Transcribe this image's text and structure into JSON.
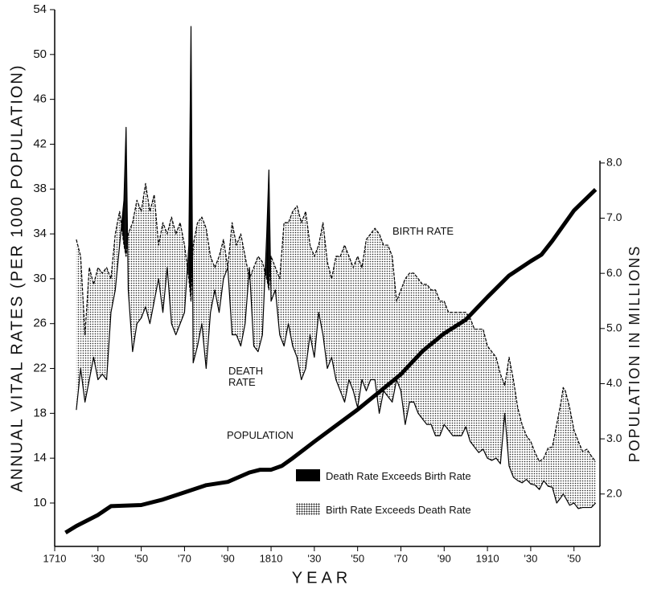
{
  "chart_data": {
    "type": "line",
    "y_label": "ANNUAL VITAL RATES (PER 1000 POPULATION)",
    "y2_label": "POPULATION IN MILLIONS",
    "x_label": "YEAR",
    "xlim": [
      1710,
      1962
    ],
    "xticks": [
      1710,
      {
        "value": 1730,
        "label": "'30"
      },
      {
        "value": 1750,
        "label": "'50"
      },
      {
        "value": 1770,
        "label": "'70"
      },
      {
        "value": 1790,
        "label": "'90"
      },
      1810,
      {
        "value": 1830,
        "label": "'30"
      },
      {
        "value": 1850,
        "label": "'50"
      },
      {
        "value": 1870,
        "label": "'70"
      },
      {
        "value": 1890,
        "label": "'90"
      },
      1910,
      {
        "value": 1930,
        "label": "'30"
      },
      {
        "value": 1950,
        "label": "'50"
      }
    ],
    "ylim": [
      6.13,
      54
    ],
    "yticks": [
      10,
      14,
      18,
      22,
      26,
      30,
      34,
      38,
      42,
      46,
      50,
      54
    ],
    "y2lim": [
      1.05,
      10.78
    ],
    "y2ticks": [
      {
        "value": 2,
        "label": "2.0"
      },
      {
        "value": 3,
        "label": "3.0"
      },
      {
        "value": 4,
        "label": "4.0"
      },
      {
        "value": 5,
        "label": "5.0"
      },
      {
        "value": 6,
        "label": "6.0"
      },
      {
        "value": 7,
        "label": "7.0"
      },
      {
        "value": 8,
        "label": "8.0"
      }
    ],
    "x": [
      1720,
      1722,
      1724,
      1726,
      1728,
      1730,
      1732,
      1734,
      1736,
      1738,
      1740,
      1742,
      1743,
      1744,
      1746,
      1748,
      1750,
      1752,
      1754,
      1756,
      1758,
      1760,
      1762,
      1764,
      1766,
      1768,
      1770,
      1772,
      1773,
      1774,
      1776,
      1778,
      1780,
      1782,
      1784,
      1786,
      1788,
      1790,
      1792,
      1794,
      1796,
      1798,
      1800,
      1802,
      1804,
      1806,
      1808,
      1809,
      1810,
      1812,
      1814,
      1816,
      1818,
      1820,
      1822,
      1824,
      1826,
      1828,
      1830,
      1832,
      1834,
      1836,
      1838,
      1840,
      1842,
      1844,
      1846,
      1848,
      1850,
      1852,
      1854,
      1856,
      1858,
      1860,
      1862,
      1864,
      1866,
      1868,
      1870,
      1872,
      1874,
      1876,
      1878,
      1880,
      1882,
      1884,
      1886,
      1888,
      1890,
      1892,
      1894,
      1896,
      1898,
      1900,
      1902,
      1904,
      1906,
      1908,
      1910,
      1912,
      1914,
      1916,
      1918,
      1920,
      1922,
      1924,
      1926,
      1928,
      1930,
      1932,
      1934,
      1936,
      1938,
      1940,
      1942,
      1944,
      1945,
      1946,
      1948,
      1950,
      1952,
      1954,
      1956,
      1958,
      1960
    ],
    "series": [
      {
        "name": "BIRTH RATE",
        "color": "#000000",
        "values": [
          33.5,
          32,
          25,
          31,
          29.5,
          31,
          30.5,
          31,
          30,
          34,
          36,
          33,
          32,
          34,
          35,
          37,
          36,
          38.5,
          36,
          37.5,
          33,
          35,
          34,
          35.5,
          34,
          35,
          33,
          30,
          28,
          33,
          35,
          35.5,
          34.5,
          32,
          31,
          32,
          33.5,
          31,
          35,
          33,
          34,
          32,
          30,
          31,
          32,
          31.5,
          30,
          29,
          32,
          31,
          30,
          35,
          35,
          36,
          36.5,
          35,
          36,
          33,
          32,
          33,
          35,
          31.5,
          30,
          32,
          32,
          33,
          32,
          31,
          32,
          31,
          33.5,
          34,
          34.5,
          34,
          33,
          33,
          32,
          28,
          29,
          30,
          30.5,
          30.5,
          30,
          29.5,
          29.5,
          29,
          29,
          28,
          28,
          27,
          27,
          27,
          27,
          27,
          26.5,
          25.5,
          25.5,
          25.5,
          24,
          23.5,
          23,
          21.5,
          20.5,
          23,
          21,
          18.5,
          17,
          16,
          15.5,
          14.5,
          13.7,
          14,
          14.9,
          15,
          17,
          19,
          20.3,
          20,
          18.5,
          16.5,
          15.5,
          14.6,
          14.8,
          14.2,
          13.7
        ]
      },
      {
        "name": "DEATH RATE",
        "color": "#000000",
        "values": [
          18.3,
          22,
          19,
          21,
          23,
          21,
          21.5,
          21,
          27,
          29,
          33,
          37,
          43.5,
          29,
          23.5,
          26,
          26.5,
          27.5,
          26,
          28,
          30,
          27,
          31,
          26,
          25,
          26,
          27,
          33,
          52.5,
          22.5,
          24,
          26,
          22,
          27,
          29,
          27,
          30,
          31,
          25,
          25,
          24,
          26,
          31,
          24,
          23.5,
          25,
          34,
          39.7,
          28,
          29,
          25,
          24,
          26,
          24,
          23,
          21,
          22,
          25,
          23,
          27,
          25,
          22,
          23,
          21,
          20,
          19,
          21,
          20,
          18.5,
          21,
          20,
          21,
          21,
          18,
          20,
          19.5,
          19,
          21,
          20,
          17,
          19,
          19,
          18,
          17.5,
          17,
          17,
          16,
          16,
          17,
          16.5,
          16,
          16,
          16,
          16.8,
          15.5,
          15,
          14.5,
          14.8,
          14,
          13.8,
          14,
          13.5,
          18,
          13.3,
          12.3,
          12,
          11.8,
          12.1,
          11.7,
          11.6,
          11.2,
          12,
          11.5,
          11.4,
          10,
          10.5,
          10.8,
          10.5,
          9.8,
          10,
          9.5,
          9.6,
          9.6,
          9.6,
          10
        ]
      },
      {
        "name": "POPULATION",
        "color": "#000000",
        "axis": "y2",
        "x": [
          1715,
          1720,
          1730,
          1736,
          1750,
          1760,
          1770,
          1780,
          1790,
          1800,
          1805,
          1810,
          1815,
          1820,
          1830,
          1840,
          1850,
          1860,
          1870,
          1880,
          1890,
          1900,
          1910,
          1920,
          1930,
          1935,
          1940,
          1950,
          1960
        ],
        "values": [
          1.3,
          1.42,
          1.62,
          1.78,
          1.8,
          1.9,
          2.03,
          2.16,
          2.22,
          2.39,
          2.44,
          2.44,
          2.51,
          2.65,
          2.95,
          3.24,
          3.53,
          3.85,
          4.17,
          4.59,
          4.91,
          5.16,
          5.57,
          5.96,
          6.22,
          6.34,
          6.59,
          7.14,
          7.52
        ]
      }
    ],
    "fills": [
      {
        "name": "Death Rate Exceeds Birth Rate",
        "color": "#000000"
      },
      {
        "name": "Birth Rate Exceeds Death Rate",
        "pattern": "dots"
      }
    ]
  }
}
